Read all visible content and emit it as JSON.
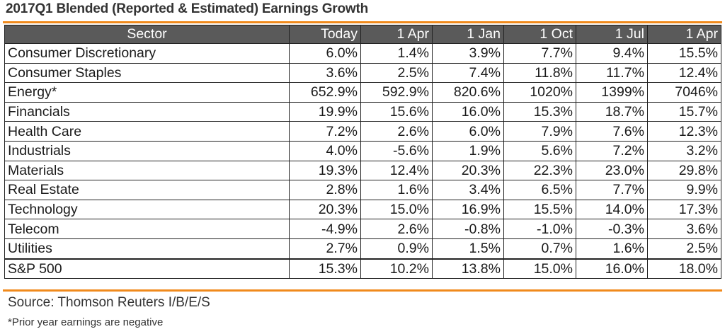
{
  "title": "2017Q1 Blended (Reported & Estimated) Earnings Growth",
  "colors": {
    "accent_rule": "#f08a1c",
    "header_bg": "#5a5a5a",
    "header_text": "#ffffff"
  },
  "table": {
    "headers": [
      "Sector",
      "Today",
      "1 Apr",
      "1 Jan",
      "1 Oct",
      "1 Jul",
      "1 Apr"
    ],
    "rows": [
      [
        "Consumer Discretionary",
        "6.0%",
        "1.4%",
        "3.9%",
        "7.7%",
        "9.4%",
        "15.5%"
      ],
      [
        "Consumer Staples",
        "3.6%",
        "2.5%",
        "7.4%",
        "11.8%",
        "11.7%",
        "12.4%"
      ],
      [
        "Energy*",
        "652.9%",
        "592.9%",
        "820.6%",
        "1020%",
        "1399%",
        "7046%"
      ],
      [
        "Financials",
        "19.9%",
        "15.6%",
        "16.0%",
        "15.3%",
        "18.7%",
        "15.7%"
      ],
      [
        "Health Care",
        "7.2%",
        "2.6%",
        "6.0%",
        "7.9%",
        "7.6%",
        "12.3%"
      ],
      [
        "Industrials",
        "4.0%",
        "-5.6%",
        "1.9%",
        "5.6%",
        "7.2%",
        "3.2%"
      ],
      [
        "Materials",
        "19.3%",
        "12.4%",
        "20.3%",
        "22.3%",
        "23.0%",
        "29.8%"
      ],
      [
        "Real Estate",
        "2.8%",
        "1.6%",
        "3.4%",
        "6.5%",
        "7.7%",
        "9.9%"
      ],
      [
        "Technology",
        "20.3%",
        "15.0%",
        "16.9%",
        "15.5%",
        "14.0%",
        "17.3%"
      ],
      [
        "Telecom",
        "-4.9%",
        "2.6%",
        "-0.8%",
        "-1.0%",
        "-0.3%",
        "3.6%"
      ],
      [
        "Utilities",
        "2.7%",
        "0.9%",
        "1.5%",
        "0.7%",
        "1.6%",
        "2.5%"
      ]
    ],
    "total": [
      "S&P 500",
      "15.3%",
      "10.2%",
      "13.8%",
      "15.0%",
      "16.0%",
      "18.0%"
    ]
  },
  "source": "Source: Thomson Reuters I/B/E/S",
  "note": "*Prior year earnings are negative"
}
